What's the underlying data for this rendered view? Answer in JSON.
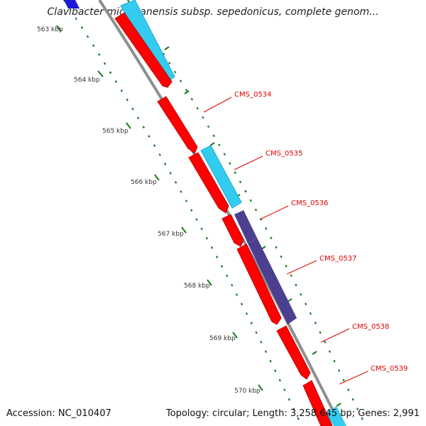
{
  "title": "Clavibacter michiganensis subsp. sepedonicus, complete genom...",
  "footer": {
    "accession": "Accession: NC_010407",
    "summary": "Topology: circular; Length: 3,258,645 bp; Genes: 2,991"
  },
  "colors": {
    "backbone": "#8f8f8f",
    "gene_forward": "#ff0000",
    "gene_cyan": "#33ccf0",
    "gene_purple": "#4b3f8f",
    "gene_blue": "#1a1ad8",
    "label": "#e00000",
    "tick": "#1a7a1a"
  },
  "scale": {
    "ticks": [
      "563 kbp",
      "564 kbp",
      "565 kbp",
      "566 kbp",
      "567 kbp",
      "568 kbp",
      "569 kbp",
      "570 kbp"
    ]
  },
  "genes": [
    {
      "name": "CMS_0534"
    },
    {
      "name": "CMS_0535"
    },
    {
      "name": "CMS_0536"
    },
    {
      "name": "CMS_0537"
    },
    {
      "name": "CMS_0538"
    },
    {
      "name": "CMS_0539"
    }
  ]
}
